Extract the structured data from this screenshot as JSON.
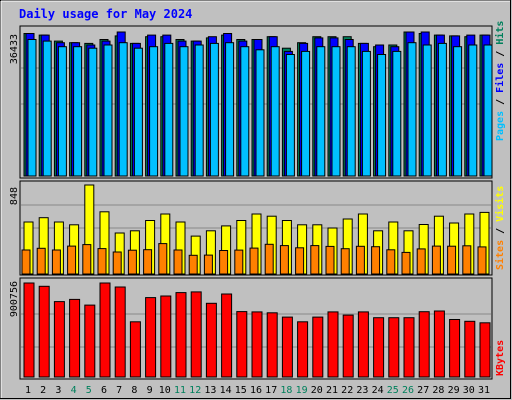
{
  "title": "Daily usage for May 2024",
  "colors": {
    "background": "#c0c0c0",
    "plot": "#c0c0c0",
    "title": "#0000ff",
    "grid": "#888888",
    "hits": "#00805c",
    "files": "#0000ff",
    "pages": "#00c0ff",
    "visits": "#ffff00",
    "sites": "#ff8000",
    "kbytes": "#ff0000",
    "weekday_label": "#000000",
    "weekend_label": "#00805c",
    "slash": "#000000"
  },
  "chart_data": [
    {
      "type": "bar",
      "name": "requests",
      "ymax_label": "36433",
      "ylim": [
        0,
        36433
      ],
      "categories": [
        "1",
        "2",
        "3",
        "4",
        "5",
        "6",
        "7",
        "8",
        "9",
        "10",
        "11",
        "12",
        "13",
        "14",
        "15",
        "16",
        "17",
        "18",
        "19",
        "20",
        "21",
        "22",
        "23",
        "24",
        "25",
        "26",
        "27",
        "28",
        "29",
        "30",
        "31"
      ],
      "weekend": [
        4,
        5,
        11,
        12,
        18,
        19,
        25,
        26
      ],
      "legend": [
        "Hits",
        "Files",
        "Pages"
      ],
      "series": [
        {
          "name": "Hits",
          "values": [
            36043,
            35647,
            34134,
            33738,
            33539,
            34531,
            35448,
            33539,
            35249,
            35249,
            34531,
            34133,
            34928,
            35647,
            34531,
            34531,
            35249,
            32326,
            33738,
            35249,
            35249,
            35249,
            33539,
            32723,
            33139,
            36433,
            36043,
            35647,
            35448,
            35249,
            35647
          ]
        },
        {
          "name": "Files",
          "values": [
            36043,
            35647,
            33738,
            33738,
            33139,
            34134,
            36433,
            33539,
            35647,
            35647,
            34134,
            34134,
            35249,
            36043,
            34134,
            34531,
            35249,
            31534,
            33539,
            34928,
            34928,
            34531,
            33539,
            33139,
            32723,
            36433,
            36433,
            35647,
            35448,
            35647,
            35647
          ]
        },
        {
          "name": "Pages",
          "values": [
            34531,
            34134,
            32723,
            32723,
            32326,
            33139,
            33738,
            32326,
            32723,
            33538,
            32723,
            33139,
            33539,
            33738,
            32723,
            31928,
            32723,
            30743,
            31534,
            32723,
            32723,
            32723,
            31534,
            30743,
            31534,
            33738,
            33139,
            33538,
            32723,
            33139,
            33139
          ]
        }
      ]
    },
    {
      "type": "bar",
      "name": "visitors",
      "ymax_label": "848",
      "ylim": [
        0,
        848
      ],
      "legend": [
        "Visits",
        "Sites"
      ],
      "series": [
        {
          "name": "Visits",
          "values": [
            495,
            536,
            495,
            469,
            848,
            593,
            391,
            412,
            510,
            572,
            495,
            361,
            412,
            458,
            510,
            572,
            551,
            510,
            469,
            469,
            438,
            524,
            572,
            412,
            495,
            412,
            472,
            551,
            486,
            572,
            587
          ]
        },
        {
          "name": "Sites",
          "values": [
            229,
            245,
            229,
            266,
            280,
            242,
            210,
            227,
            232,
            290,
            229,
            178,
            180,
            224,
            228,
            247,
            283,
            271,
            250,
            271,
            263,
            241,
            264,
            260,
            231,
            206,
            239,
            266,
            265,
            269,
            258
          ]
        }
      ]
    },
    {
      "type": "bar",
      "name": "kbytes",
      "ymax_label": "900756",
      "ylim": [
        0,
        900756
      ],
      "legend": [
        "KBytes"
      ],
      "series": [
        {
          "name": "KBytes",
          "values": [
            900756,
            868745,
            722350,
            743455,
            688547,
            900756,
            862100,
            528555,
            761000,
            776543,
            809000,
            815000,
            706000,
            795000,
            627000,
            623350,
            615000,
            574000,
            528555,
            574000,
            623350,
            593000,
            623350,
            568500,
            568500,
            568500,
            626000,
            632000,
            551000,
            534000,
            519500
          ]
        }
      ]
    }
  ]
}
